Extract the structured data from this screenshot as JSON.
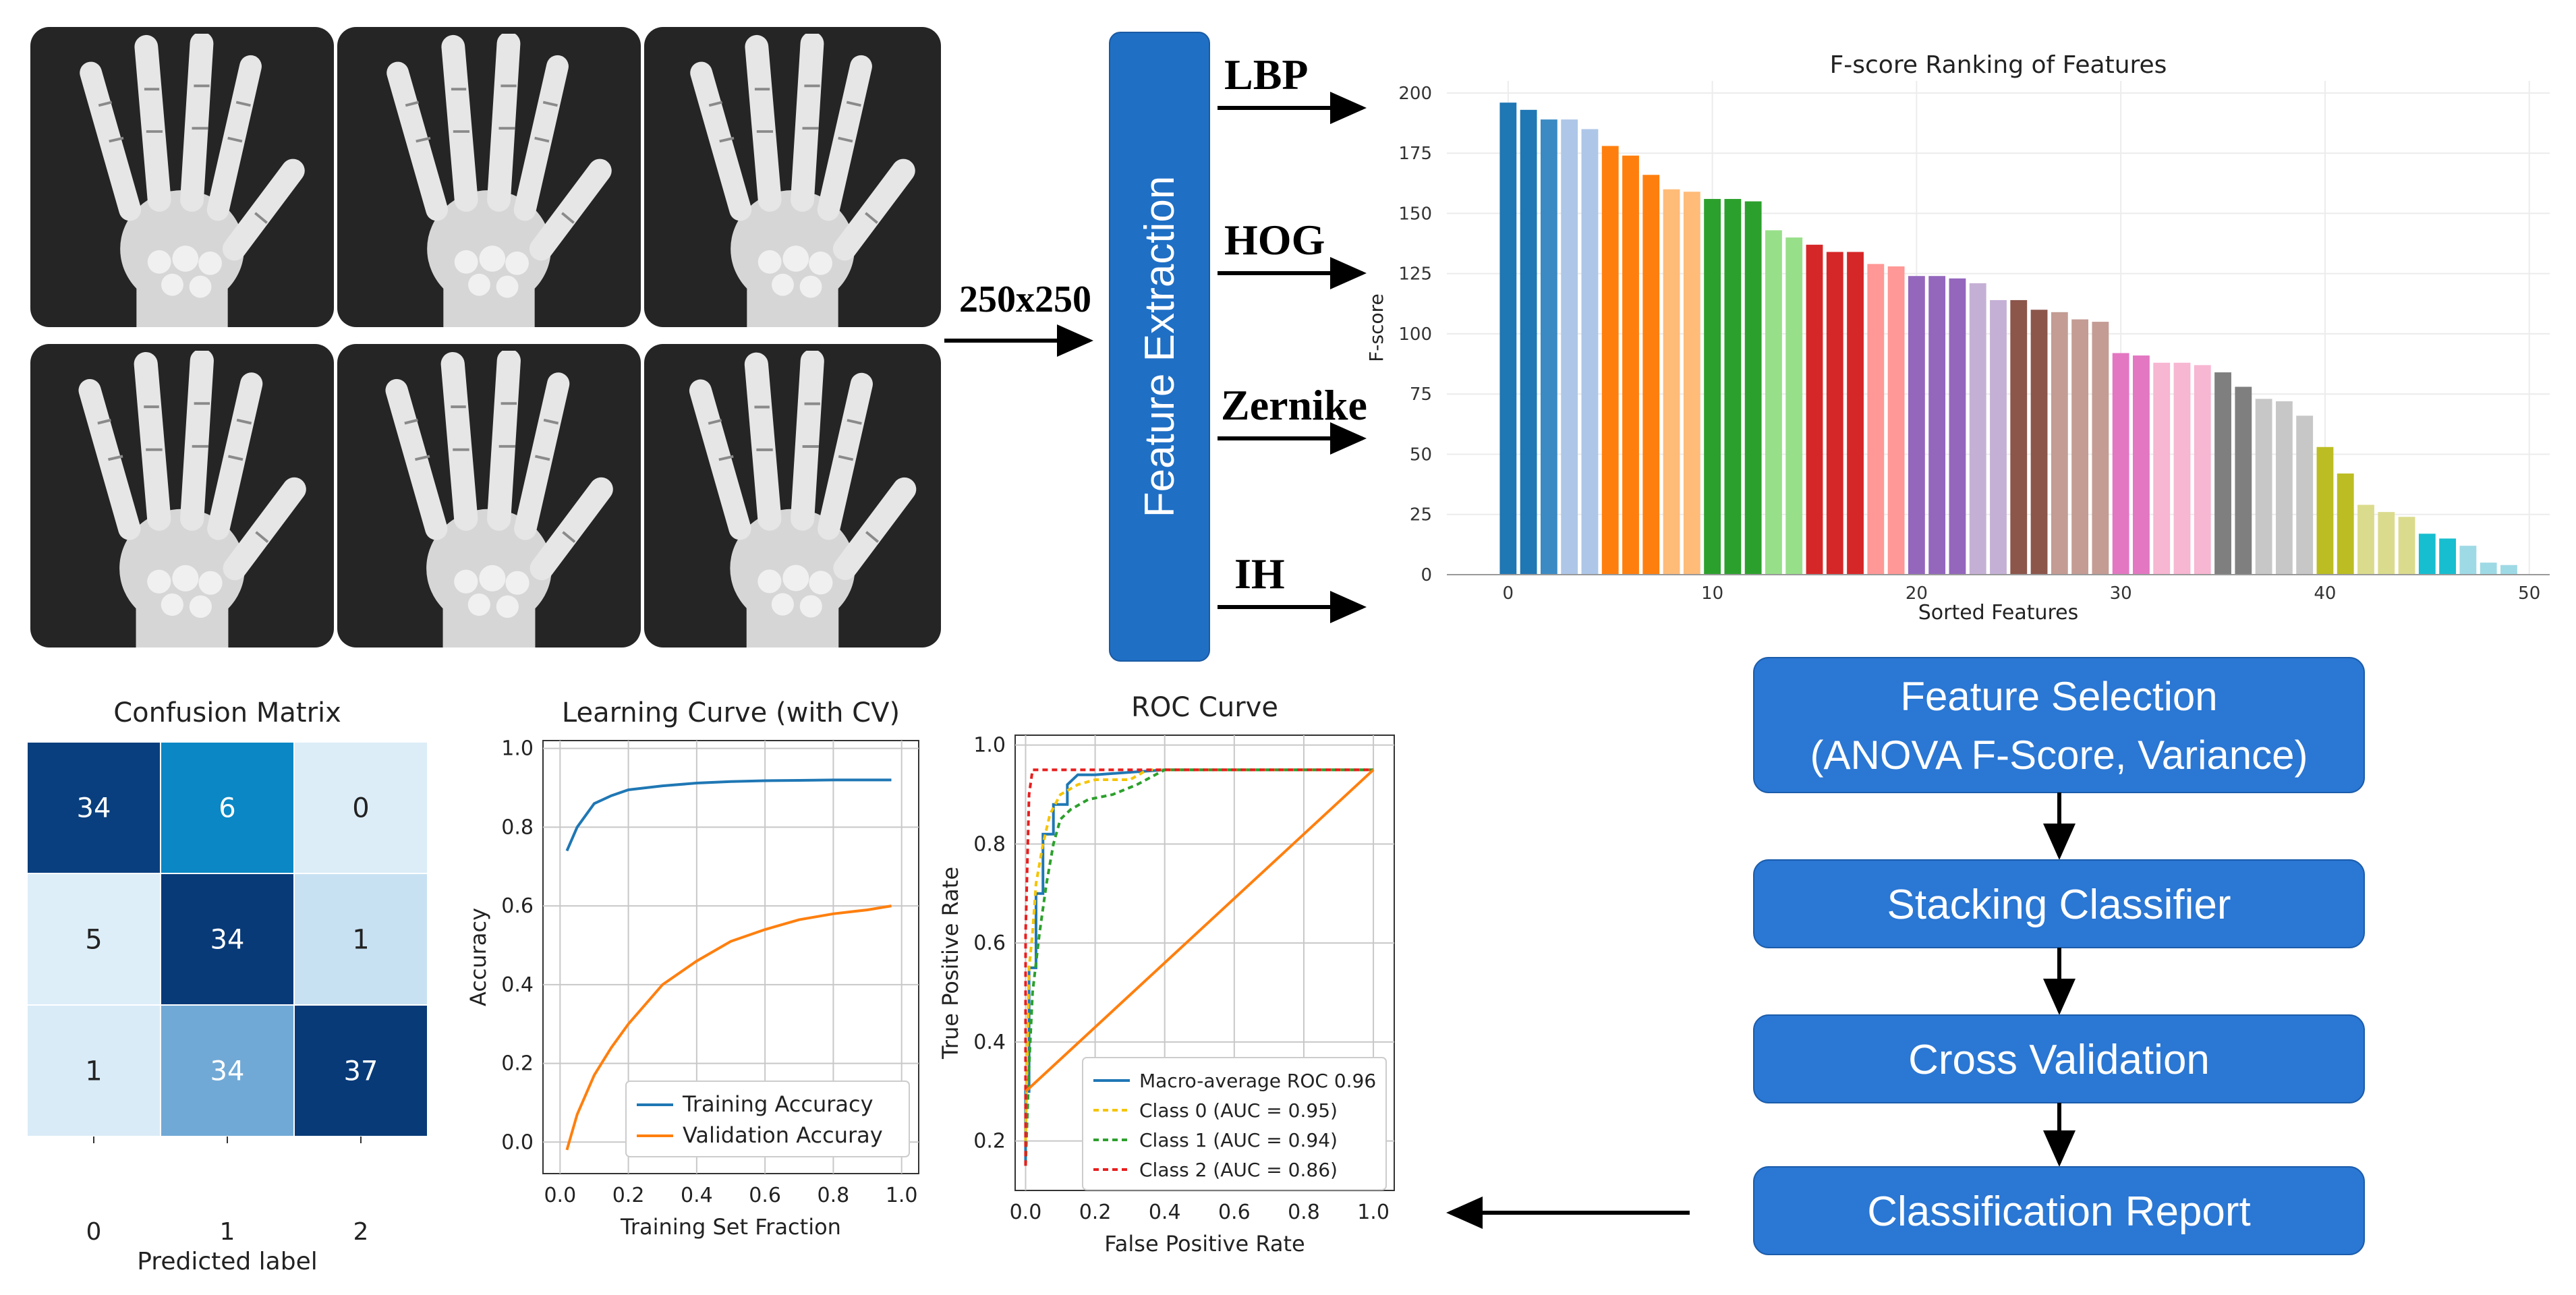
{
  "input": {
    "resize_label": "250x250"
  },
  "feature_extraction": {
    "box_label": "Feature Extraction",
    "features": [
      "LBP",
      "HOG",
      "Zernike",
      "IH"
    ],
    "accent": "#1f6fc5"
  },
  "fscore_chart": {
    "chart_data": {
      "type": "bar",
      "title": "F-score Ranking of Features",
      "xlabel": "Sorted Features",
      "ylabel": "F-score",
      "ylim": [
        0,
        205
      ],
      "xlim": [
        -3,
        51
      ],
      "yticks": [
        0,
        25,
        50,
        75,
        100,
        125,
        150,
        175,
        200
      ],
      "xticks": [
        0,
        10,
        20,
        30,
        40,
        50
      ],
      "values": [
        196,
        193,
        189,
        189,
        185,
        178,
        174,
        166,
        160,
        159,
        156,
        156,
        155,
        143,
        140,
        137,
        134,
        134,
        129,
        128,
        124,
        124,
        123,
        121,
        114,
        114,
        110,
        109,
        106,
        105,
        92,
        91,
        88,
        88,
        87,
        84,
        78,
        73,
        72,
        66,
        53,
        42,
        29,
        26,
        24,
        17,
        15,
        12,
        5,
        4
      ],
      "colors": [
        "#1f77b4",
        "#1f77b4",
        "#3b8ac4",
        "#aec7e8",
        "#aec7e8",
        "#ff7f0e",
        "#ff7f0e",
        "#ff7f0e",
        "#ffbb78",
        "#ffbb78",
        "#2ca02c",
        "#2ca02c",
        "#2ca02c",
        "#98df8a",
        "#98df8a",
        "#d62728",
        "#d62728",
        "#d62728",
        "#ff9896",
        "#ff9896",
        "#9467bd",
        "#9467bd",
        "#9467bd",
        "#c5b0d5",
        "#c5b0d5",
        "#8c564b",
        "#8c564b",
        "#c49c94",
        "#c49c94",
        "#c49c94",
        "#e377c2",
        "#e377c2",
        "#f7b6d2",
        "#f7b6d2",
        "#f7b6d2",
        "#7f7f7f",
        "#7f7f7f",
        "#c7c7c7",
        "#c7c7c7",
        "#c7c7c7",
        "#bcbd22",
        "#bcbd22",
        "#dbdb8d",
        "#dbdb8d",
        "#dbdb8d",
        "#17becf",
        "#17becf",
        "#9edae5",
        "#9edae5",
        "#9edae5"
      ]
    }
  },
  "pipeline": {
    "accent": "#2a77d4",
    "steps": [
      {
        "line1": "Feature Selection",
        "line2": "(ANOVA F-Score, Variance)"
      },
      {
        "line1": "Stacking Classifier"
      },
      {
        "line1": "Cross Validation"
      },
      {
        "line1": "Classification Report"
      }
    ]
  },
  "confusion_matrix": {
    "chart_data": {
      "type": "heatmap",
      "title": "Confusion Matrix",
      "xlabel": "Predicted label",
      "ylabel": "",
      "x_ticks": [
        "0",
        "1",
        "2"
      ],
      "matrix": [
        [
          34,
          6,
          0
        ],
        [
          5,
          34,
          1
        ],
        [
          1,
          34,
          37
        ]
      ],
      "cell_colors": [
        [
          "#093f7e",
          "#0a87c4",
          "#dcedf8"
        ],
        [
          "#ddeef8",
          "#083a78",
          "#c8e1f2"
        ],
        [
          "#d9ebf7",
          "#71a9d6",
          "#083a78"
        ]
      ],
      "text_colors": [
        [
          "#ffffff",
          "#ffffff",
          "#222222"
        ],
        [
          "#222222",
          "#ffffff",
          "#222222"
        ],
        [
          "#222222",
          "#ffffff",
          "#ffffff"
        ]
      ]
    }
  },
  "learning_curve": {
    "chart_data": {
      "type": "line",
      "title": "Learning Curve (with CV)",
      "xlabel": "Training Set Fraction",
      "ylabel": "Accuracy",
      "xlim": [
        -0.05,
        1.05
      ],
      "ylim": [
        -0.08,
        1.02
      ],
      "xticks": [
        "0.0",
        "0.2",
        "0.4",
        "0.6",
        "0.8",
        "1.0"
      ],
      "yticks": [
        "0.0",
        "0.2",
        "0.4",
        "0.6",
        "0.8",
        "1.0"
      ],
      "series": [
        {
          "name": "Training Accuracy",
          "color": "#1f77b4",
          "x": [
            0.02,
            0.05,
            0.1,
            0.15,
            0.2,
            0.3,
            0.4,
            0.5,
            0.6,
            0.7,
            0.8,
            0.9,
            0.97
          ],
          "y": [
            0.74,
            0.8,
            0.86,
            0.88,
            0.895,
            0.905,
            0.912,
            0.916,
            0.918,
            0.919,
            0.92,
            0.92,
            0.92
          ]
        },
        {
          "name": "Validation Accuray",
          "color": "#ff7f0e",
          "x": [
            0.02,
            0.05,
            0.1,
            0.15,
            0.2,
            0.3,
            0.4,
            0.5,
            0.6,
            0.7,
            0.8,
            0.9,
            0.97
          ],
          "y": [
            -0.02,
            0.07,
            0.17,
            0.24,
            0.3,
            0.4,
            0.46,
            0.51,
            0.54,
            0.565,
            0.58,
            0.59,
            0.6
          ]
        }
      ]
    }
  },
  "roc_curve": {
    "chart_data": {
      "type": "line",
      "title": "ROC Curve",
      "xlabel": "False Positive Rate",
      "ylabel": "True Positive Rate",
      "xlim": [
        -0.03,
        1.06
      ],
      "ylim": [
        0.1,
        1.02
      ],
      "xticks": [
        "0.0",
        "0.2",
        "0.4",
        "0.6",
        "0.8",
        "1.0"
      ],
      "yticks": [
        "0.2",
        "0.4",
        "0.6",
        "0.8",
        "1.0"
      ],
      "series": [
        {
          "name": "Macro-average ROC 0.96",
          "color": "#1f77b4",
          "dash": "",
          "x": [
            0,
            0,
            0.01,
            0.01,
            0.03,
            0.03,
            0.05,
            0.05,
            0.08,
            0.08,
            0.12,
            0.12,
            0.15,
            0.2,
            0.3,
            0.4,
            0.5,
            0.7,
            1.0
          ],
          "y": [
            0.15,
            0.3,
            0.3,
            0.55,
            0.55,
            0.7,
            0.7,
            0.82,
            0.82,
            0.88,
            0.88,
            0.92,
            0.94,
            0.94,
            0.945,
            0.95,
            0.95,
            0.95,
            0.95
          ]
        },
        {
          "name": "Class 0 (AUC = 0.95)",
          "color": "#f5c400",
          "dash": "8,6",
          "x": [
            0,
            0.01,
            0.02,
            0.03,
            0.05,
            0.07,
            0.1,
            0.15,
            0.2,
            0.3,
            0.35,
            1.0
          ],
          "y": [
            0.2,
            0.55,
            0.62,
            0.72,
            0.8,
            0.86,
            0.9,
            0.92,
            0.93,
            0.93,
            0.95,
            0.95
          ]
        },
        {
          "name": "Class 1 (AUC = 0.94)",
          "color": "#2ca02c",
          "dash": "8,6",
          "x": [
            0,
            0.01,
            0.02,
            0.04,
            0.06,
            0.08,
            0.1,
            0.13,
            0.18,
            0.25,
            0.32,
            0.4,
            1.0
          ],
          "y": [
            0.15,
            0.35,
            0.5,
            0.62,
            0.72,
            0.8,
            0.85,
            0.87,
            0.89,
            0.9,
            0.92,
            0.95,
            0.95
          ]
        },
        {
          "name": "Class 2 (AUC = 0.86)",
          "color": "#e81e1e",
          "dash": "8,6",
          "x": [
            0,
            0.0,
            0.01,
            0.02,
            1.0
          ],
          "y": [
            0.15,
            0.62,
            0.9,
            0.95,
            0.95
          ]
        },
        {
          "name": "chance",
          "color": "#ff7f0e",
          "dash": "",
          "legend": false,
          "x": [
            0,
            1.0
          ],
          "y": [
            0.3,
            0.95
          ]
        }
      ]
    }
  }
}
